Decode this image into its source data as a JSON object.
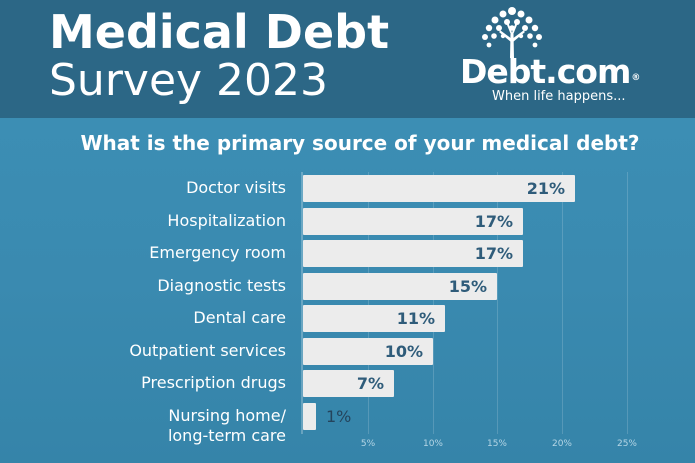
{
  "header": {
    "title_line1": "Medical Debt",
    "title_line2": "Survey 2023",
    "logo_text": "Debt.com",
    "logo_mark": "®",
    "tagline": "When life happens...",
    "logo_icon": "tree-icon"
  },
  "colors": {
    "header_bg": "#2c6786",
    "page_bg": "#3a8ab0",
    "bar_fill": "#ececec",
    "value_text": "#2f5c7a"
  },
  "chart_data": {
    "type": "bar",
    "orientation": "horizontal",
    "title": "What is the primary source of your medical debt?",
    "categories": [
      "Doctor visits",
      "Hospitalization",
      "Emergency room",
      "Diagnostic tests",
      "Dental care",
      "Outpatient services",
      "Prescription drugs",
      "Nursing home/ long-term care"
    ],
    "values": [
      21,
      17,
      17,
      15,
      11,
      10,
      7,
      1
    ],
    "value_labels": [
      "21%",
      "17%",
      "17%",
      "15%",
      "11%",
      "10%",
      "7%",
      "1%"
    ],
    "xticks": [
      "5%",
      "10%",
      "15%",
      "20%",
      "25%"
    ],
    "xtick_values": [
      5,
      10,
      15,
      20,
      25
    ],
    "xlim": [
      0,
      25
    ],
    "grid": true,
    "unit": "%"
  }
}
